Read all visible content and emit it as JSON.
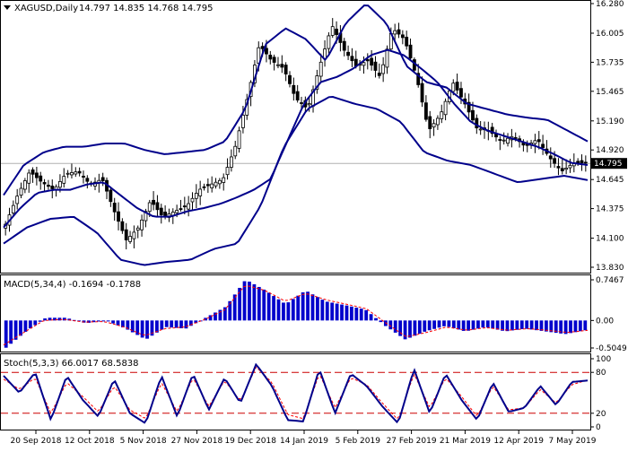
{
  "header": {
    "symbol": "XAGUSD,Daily",
    "ohlc": "14.797 14.835 14.768 14.795"
  },
  "macd_header": "MACD(5,34,4) -0.1694 -0.1788",
  "stoch_header": "Stoch(5,3,3) 66.0017 68.5838",
  "colors": {
    "bollinger": "#00008b",
    "candles": "#000000",
    "macd_hist": "#0000cc",
    "signal_line": "#ff0000",
    "stoch_main": "#00008b",
    "stoch_level": "#cc0000",
    "price_tag_bg": "#000000"
  },
  "chart_data": [
    {
      "type": "candlestick",
      "name": "price",
      "y_ticks": [
        "16.280",
        "16.005",
        "15.735",
        "15.465",
        "15.190",
        "14.920",
        "14.645",
        "14.375",
        "14.100",
        "13.830"
      ],
      "ylim": [
        13.83,
        16.28
      ],
      "current_price": "14.795",
      "x_labels": [
        "20 Sep 2018",
        "12 Oct 2018",
        "5 Nov 2018",
        "27 Nov 2018",
        "19 Dec 2018",
        "14 Jan 2019",
        "5 Feb 2019",
        "27 Feb 2019",
        "21 Mar 2019",
        "12 Apr 2019",
        "7 May 2019"
      ],
      "close_anchors": [
        14.23,
        14.5,
        14.72,
        14.62,
        14.55,
        14.7,
        14.72,
        14.6,
        14.65,
        14.35,
        14.08,
        14.2,
        14.45,
        14.3,
        14.35,
        14.4,
        14.55,
        14.6,
        14.65,
        14.95,
        15.4,
        15.9,
        15.75,
        15.68,
        15.4,
        15.3,
        15.7,
        16.08,
        15.85,
        15.7,
        15.75,
        15.6,
        16.05,
        15.95,
        15.6,
        15.1,
        15.25,
        15.55,
        15.35,
        15.12,
        15.1,
        15.0,
        15.05,
        14.95,
        15.02,
        14.85,
        14.72,
        14.8,
        14.8
      ],
      "bollinger_mid_anchors": [
        14.2,
        14.38,
        14.52,
        14.55,
        14.55,
        14.6,
        14.62,
        14.5,
        14.38,
        14.3,
        14.3,
        14.35,
        14.38,
        14.42,
        14.48,
        14.55,
        14.65,
        15.0,
        15.35,
        15.55,
        15.6,
        15.68,
        15.8,
        15.85,
        15.8,
        15.68,
        15.55,
        15.35,
        15.18,
        15.1,
        15.05,
        15.0,
        14.95,
        14.88,
        14.8,
        14.78
      ],
      "bollinger_upper_anchors": [
        14.5,
        14.78,
        14.9,
        14.95,
        14.95,
        14.98,
        14.98,
        14.92,
        14.88,
        14.9,
        14.92,
        15.0,
        15.3,
        15.9,
        16.05,
        15.95,
        15.75,
        16.1,
        16.28,
        16.1,
        15.7,
        15.55,
        15.5,
        15.35,
        15.3,
        15.25,
        15.22,
        15.2,
        15.1,
        15.0
      ],
      "bollinger_lower_anchors": [
        14.05,
        14.2,
        14.28,
        14.3,
        14.15,
        13.9,
        13.85,
        13.88,
        13.9,
        14.0,
        14.05,
        14.4,
        14.95,
        15.3,
        15.42,
        15.35,
        15.3,
        15.18,
        14.9,
        14.82,
        14.78,
        14.7,
        14.62,
        14.65,
        14.68,
        14.64
      ]
    },
    {
      "type": "bar",
      "name": "MACD(5,34,4)",
      "y_ticks": [
        "0.7467",
        "0.00",
        "-0.5049"
      ],
      "ylim": [
        -0.5049,
        0.7467
      ],
      "values_anchors": [
        -0.5,
        -0.2,
        0.05,
        0.05,
        -0.05,
        0.0,
        -0.15,
        -0.35,
        -0.12,
        -0.15,
        0.05,
        0.25,
        0.75,
        0.55,
        0.3,
        0.55,
        0.35,
        0.28,
        0.2,
        -0.1,
        -0.35,
        -0.2,
        -0.1,
        -0.2,
        -0.12,
        -0.2,
        -0.15,
        -0.2,
        -0.25,
        -0.18
      ],
      "signal_anchors": [
        -0.45,
        -0.22,
        0.0,
        0.02,
        -0.03,
        -0.02,
        -0.12,
        -0.28,
        -0.15,
        -0.12,
        0.02,
        0.2,
        0.65,
        0.55,
        0.35,
        0.5,
        0.38,
        0.3,
        0.22,
        -0.05,
        -0.3,
        -0.22,
        -0.12,
        -0.18,
        -0.13,
        -0.18,
        -0.15,
        -0.18,
        -0.22,
        -0.18
      ]
    },
    {
      "type": "line",
      "name": "Stoch(5,3,3)",
      "y_ticks": [
        "100",
        "80",
        "20",
        "0"
      ],
      "ylim": [
        0,
        100
      ],
      "levels": [
        80,
        20
      ],
      "main_anchors": [
        75,
        50,
        80,
        10,
        75,
        40,
        15,
        70,
        20,
        5,
        75,
        15,
        78,
        25,
        72,
        35,
        92,
        60,
        10,
        8,
        85,
        20,
        78,
        60,
        30,
        5,
        85,
        20,
        78,
        40,
        10,
        65,
        22,
        28,
        60,
        32,
        66,
        68
      ],
      "signal_anchors": [
        70,
        55,
        72,
        20,
        65,
        45,
        22,
        60,
        25,
        12,
        65,
        22,
        72,
        30,
        68,
        38,
        88,
        65,
        18,
        12,
        78,
        28,
        72,
        62,
        35,
        10,
        78,
        28,
        72,
        45,
        15,
        60,
        25,
        28,
        55,
        35,
        62,
        68.6
      ]
    }
  ]
}
